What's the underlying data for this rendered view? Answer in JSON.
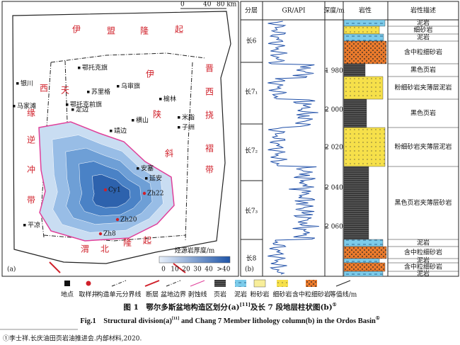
{
  "panel_a": {
    "label": "(a)",
    "scale": [
      "0",
      "40",
      "80 km"
    ],
    "yimeng_uplift": [
      "伊",
      "盟",
      "隆",
      "起"
    ],
    "jinxi_fold_belt": [
      "晋",
      "西",
      "挠",
      "褶",
      "带"
    ],
    "west_thrust_belt": [
      "西",
      "缘",
      "逆",
      "冲",
      "带"
    ],
    "tianhuan_depression": [
      "天"
    ],
    "yishan_slope": [
      "伊",
      "陕",
      "斜"
    ],
    "weibei_uplift": [
      "渭",
      "北",
      "隆",
      "起"
    ],
    "places": [
      "鄂托克旗",
      "乌审旗",
      "苏里格",
      "鄂托克前旗",
      "榆林",
      "银川",
      "横山",
      "米脂",
      "子洲",
      "马家滩",
      "定边",
      "靖边",
      "安塞",
      "延安",
      "平凉"
    ],
    "wells": [
      "Cy1",
      "Zh22",
      "Zh20",
      "Zh8"
    ],
    "thickness_title": "烃源岩厚度/m",
    "thickness_ticks": [
      "0",
      "10",
      "20",
      "30",
      "40",
      ">40"
    ]
  },
  "panel_b": {
    "label": "(b)",
    "headers": [
      "分层",
      "GR/API",
      "深度/m",
      "岩性",
      "岩性描述"
    ],
    "layers": [
      "长6",
      "长7₁",
      "长7₂",
      "长7₃",
      "长8"
    ],
    "depths": [
      "1 980",
      "2 000",
      "2 020",
      "2 040",
      "2 060"
    ],
    "descriptions": [
      "泥岩",
      "细砂岩",
      "泥岩",
      "含中粒细砂岩",
      "黑色页岩",
      "粉细砂岩夹薄层泥岩",
      "黑色页岩",
      "粉细砂岩夹薄层泥岩",
      "黑色页岩夹薄层砂岩",
      "泥岩",
      "含中粒细砂岩",
      "泥岩",
      "含中粒细砂岩",
      "泥岩"
    ]
  },
  "legend": [
    "地点",
    "取样井",
    "构造单元分界线",
    "断层",
    "盆地边界",
    "剥蚀线",
    "页岩",
    "泥岩",
    "粉砂岩",
    "细砂岩",
    "含中粒细砂岩",
    "等值线/m"
  ],
  "caption": {
    "zh_main": "图 1　鄂尔多斯盆地构造区划分(a)",
    "zh_ref": "[11]",
    "zh_rest": "及长 7 段地层柱状图(b)",
    "zh_note": "①",
    "en_main": "Fig.1　Structural division(a)",
    "en_ref": "[11]",
    "en_rest": " and Chang 7 Member lithology column(b) in the Ordos Basin",
    "en_note": "①"
  },
  "footnote": "①李士祥.长庆油田页岩油推进会.内部材料,2020."
}
